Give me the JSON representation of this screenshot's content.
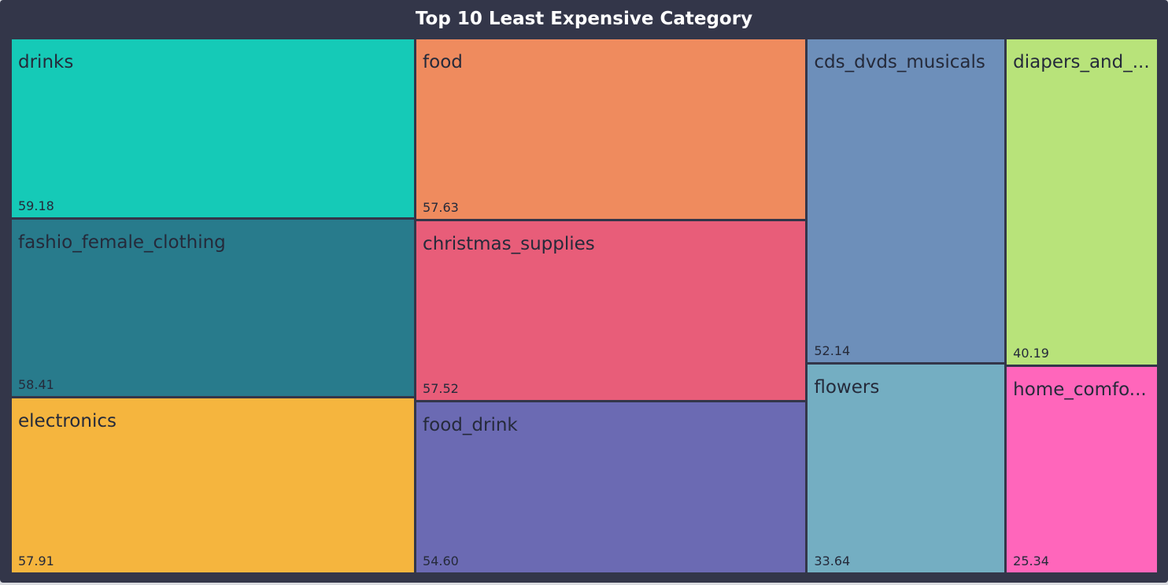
{
  "chart_data": {
    "type": "treemap",
    "title": "Top 10 Least Expensive Category",
    "items": [
      {
        "name": "drinks",
        "value": 59.18,
        "color": "#15cab7"
      },
      {
        "name": "fashio_female_clothing",
        "value": 58.41,
        "color": "#287b8c"
      },
      {
        "name": "electronics",
        "value": 57.91,
        "color": "#f5b53e"
      },
      {
        "name": "food",
        "value": 57.63,
        "color": "#ef8b5e"
      },
      {
        "name": "christmas_supplies",
        "value": 57.52,
        "color": "#e85d79"
      },
      {
        "name": "food_drink",
        "value": 54.6,
        "color": "#6b6ab3"
      },
      {
        "name": "cds_dvds_musicals",
        "value": 52.14,
        "color": "#6d8fba"
      },
      {
        "name": "flowers",
        "value": 33.64,
        "color": "#74aec2"
      },
      {
        "name": "diapers_and_hygiene",
        "display_label": "diapers_and_...",
        "value": 40.19,
        "color": "#b8e37a"
      },
      {
        "name": "home_comfort",
        "display_label": "home_comfo...",
        "value": 25.34,
        "color": "#ff66bb"
      }
    ],
    "columns": [
      [
        "drinks",
        "fashio_female_clothing",
        "electronics"
      ],
      [
        "food",
        "christmas_supplies",
        "food_drink"
      ],
      [
        "cds_dvds_musicals",
        "flowers"
      ],
      [
        "diapers_and_hygiene",
        "home_comfort"
      ]
    ],
    "value_format": "2-decimal"
  }
}
